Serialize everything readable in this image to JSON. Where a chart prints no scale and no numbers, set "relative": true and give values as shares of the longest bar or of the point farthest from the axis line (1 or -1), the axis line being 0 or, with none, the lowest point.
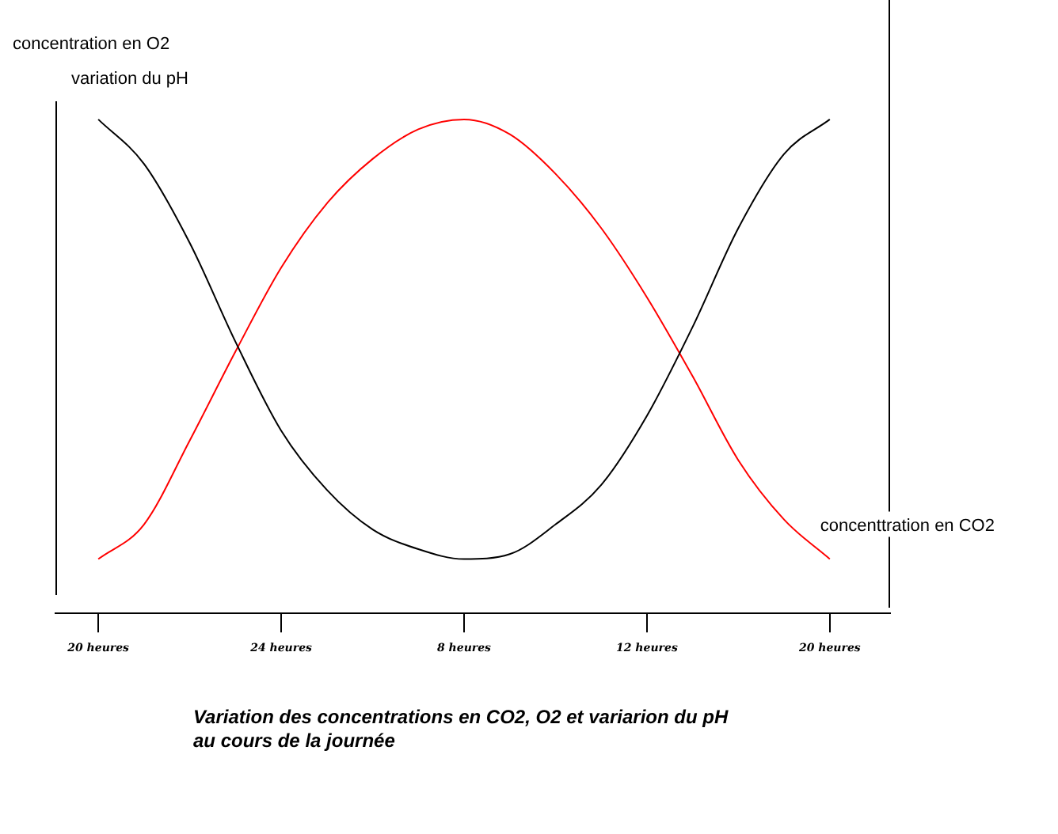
{
  "chart_data": {
    "type": "line",
    "relative": true,
    "title": "Variation des concentrations en CO2, O2 et variarion du pH\nau cours de la journée",
    "categories": [
      "20 heures",
      null,
      null,
      null,
      "24 heures",
      null,
      null,
      null,
      "8 heures",
      null,
      null,
      null,
      "12 heures",
      null,
      null,
      null,
      "20 heures"
    ],
    "series": [
      {
        "color": "#000000",
        "values": [
          1.0,
          0.91,
          0.75,
          0.55,
          0.37,
          0.25,
          0.17,
          0.13,
          0.11,
          0.12,
          0.18,
          0.26,
          0.4,
          0.58,
          0.78,
          0.93,
          1.0
        ]
      },
      {
        "name": "concenttration en CO2",
        "color": "#ff0000",
        "values": [
          0.11,
          0.18,
          0.35,
          0.53,
          0.7,
          0.83,
          0.92,
          0.98,
          1.0,
          0.97,
          0.89,
          0.78,
          0.64,
          0.48,
          0.31,
          0.19,
          0.11
        ]
      }
    ],
    "annotations": [
      "concentration en O2",
      "variation du pH"
    ],
    "grid": false,
    "legend": false,
    "marker": "none"
  }
}
